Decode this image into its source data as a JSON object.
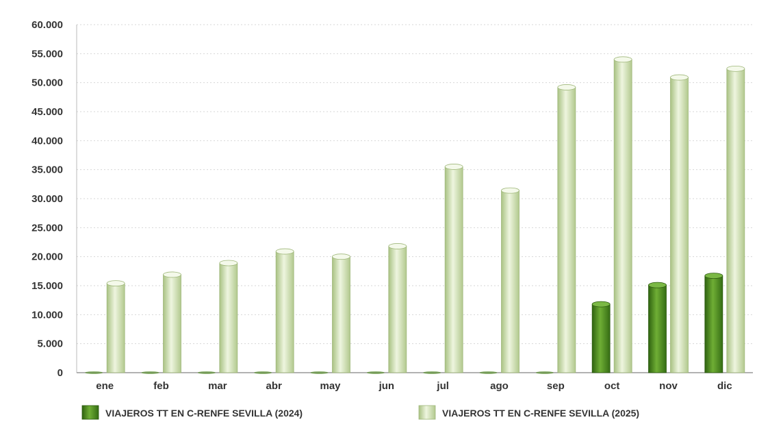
{
  "chart_data": {
    "type": "bar",
    "categories": [
      "ene",
      "feb",
      "mar",
      "abr",
      "may",
      "jun",
      "jul",
      "ago",
      "sep",
      "oct",
      "nov",
      "dic"
    ],
    "series": [
      {
        "name": "VIAJEROS TT EN C-RENFE SEVILLA (2024)",
        "values": [
          0,
          0,
          0,
          0,
          0,
          0,
          0,
          0,
          0,
          11800,
          15100,
          16700
        ],
        "color": "#4c8a1f"
      },
      {
        "name": "VIAJEROS TT EN C-RENFE SEVILLA (2025)",
        "values": [
          15400,
          16900,
          18900,
          20900,
          20000,
          21800,
          35500,
          31400,
          49200,
          54000,
          50900,
          52400
        ],
        "color": "#c9ddaa"
      }
    ],
    "ylim": [
      0,
      60000
    ],
    "yticks": [
      {
        "value": 0,
        "label": "0"
      },
      {
        "value": 5000,
        "label": "5.000"
      },
      {
        "value": 10000,
        "label": "10.000"
      },
      {
        "value": 15000,
        "label": "15.000"
      },
      {
        "value": 20000,
        "label": "20.000"
      },
      {
        "value": 25000,
        "label": "25.000"
      },
      {
        "value": 30000,
        "label": "30.000"
      },
      {
        "value": 35000,
        "label": "35.000"
      },
      {
        "value": 40000,
        "label": "40.000"
      },
      {
        "value": 45000,
        "label": "45.000"
      },
      {
        "value": 50000,
        "label": "50.000"
      },
      {
        "value": 55000,
        "label": "55.000"
      },
      {
        "value": 60000,
        "label": "60.000"
      }
    ],
    "grid": true,
    "legend_position": "bottom"
  }
}
